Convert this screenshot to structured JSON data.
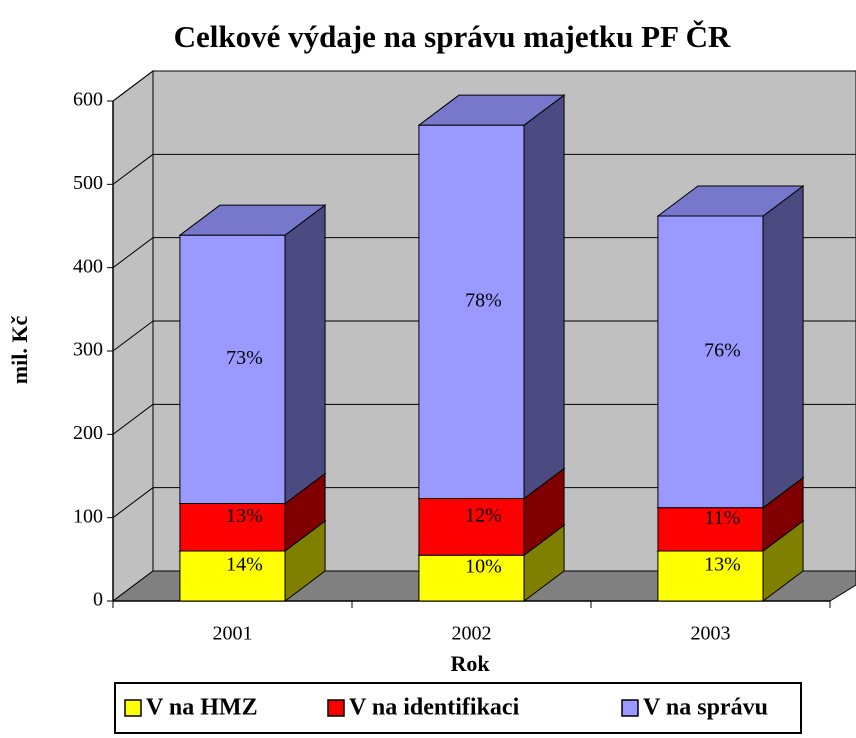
{
  "chart_data": {
    "type": "bar3d_stacked",
    "title": "Celkové výdaje na správu majetku PF ČR",
    "y_label": "mil. Kč",
    "x_label": "Rok",
    "categories": [
      "2001",
      "2002",
      "2003"
    ],
    "series": [
      {
        "name": "V na HMZ",
        "color": "#ffff00",
        "side_color": "#808000",
        "values": [
          60,
          55,
          60
        ],
        "labels": [
          "14%",
          "10%",
          "13%"
        ]
      },
      {
        "name": "V na identifikaci",
        "color": "#ff0000",
        "side_color": "#800000",
        "values": [
          57,
          68,
          52
        ],
        "labels": [
          "13%",
          "12%",
          "11%"
        ]
      },
      {
        "name": "V na správu",
        "color": "#9999ff",
        "side_color": "#4b4b82",
        "top_color": "#7777cc",
        "values": [
          322,
          448,
          350
        ],
        "labels": [
          "73%",
          "78%",
          "76%"
        ]
      }
    ],
    "ylim": [
      0,
      600
    ],
    "yticks": [
      0,
      100,
      200,
      300,
      400,
      500,
      600
    ],
    "grid": true
  }
}
